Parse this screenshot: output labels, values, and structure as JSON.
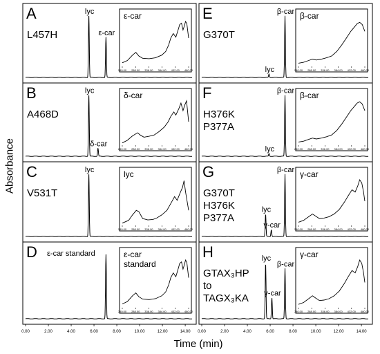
{
  "figure": {
    "ylabel": "Absorbance",
    "xlabel": "Time (min)",
    "x_ticks": [
      "0.00",
      "2.00",
      "4.00",
      "6.00",
      "8.00",
      "10.00",
      "12.00",
      "14.00"
    ],
    "inset_ticks": [
      "240.00",
      "288.00",
      "336.00",
      "384.00",
      "432.00",
      "480.00"
    ]
  },
  "chart_data": [
    {
      "type": "line",
      "panel": "A",
      "label_lines": [
        "L457H"
      ],
      "xlabel": "Time (min)",
      "ylabel": "Absorbance",
      "xlim": [
        0,
        14.6
      ],
      "ylim": [
        0,
        1
      ],
      "peaks": [
        {
          "x": 5.55,
          "y": 0.92,
          "label": "lyc"
        },
        {
          "x": 7.05,
          "y": 0.6,
          "label": "ε-car"
        }
      ],
      "inset": {
        "title_lines": [
          "ε-car"
        ],
        "xlim": [
          230,
          490
        ],
        "x": [
          230,
          250,
          270,
          283,
          295,
          310,
          335,
          360,
          385,
          400,
          412,
          420,
          430,
          440,
          450,
          455,
          462,
          468,
          472,
          478,
          483,
          490
        ],
        "y": [
          0.05,
          0.1,
          0.22,
          0.28,
          0.2,
          0.15,
          0.14,
          0.16,
          0.22,
          0.3,
          0.45,
          0.6,
          0.7,
          0.62,
          0.8,
          0.9,
          0.93,
          0.78,
          0.85,
          0.97,
          0.92,
          0.6
        ]
      }
    },
    {
      "type": "line",
      "panel": "B",
      "label_lines": [
        "A468D"
      ],
      "xlabel": "Time (min)",
      "ylabel": "Absorbance",
      "xlim": [
        0,
        14.6
      ],
      "ylim": [
        0,
        1
      ],
      "peaks": [
        {
          "x": 5.55,
          "y": 0.92,
          "label": "lyc"
        },
        {
          "x": 6.35,
          "y": 0.12,
          "label": "δ-car"
        }
      ],
      "inset": {
        "title_lines": [
          "δ-car"
        ],
        "xlim": [
          230,
          490
        ],
        "x": [
          230,
          250,
          270,
          290,
          300,
          315,
          335,
          355,
          375,
          395,
          410,
          420,
          432,
          440,
          452,
          460,
          468,
          475,
          482,
          490
        ],
        "y": [
          0.02,
          0.08,
          0.18,
          0.25,
          0.2,
          0.15,
          0.17,
          0.2,
          0.28,
          0.38,
          0.5,
          0.62,
          0.72,
          0.65,
          0.8,
          0.92,
          0.75,
          0.88,
          0.97,
          0.5
        ]
      }
    },
    {
      "type": "line",
      "panel": "C",
      "label_lines": [
        "V531T"
      ],
      "xlabel": "Time (min)",
      "ylabel": "Absorbance",
      "xlim": [
        0,
        14.6
      ],
      "ylim": [
        0,
        1
      ],
      "peaks": [
        {
          "x": 5.55,
          "y": 0.92,
          "label": "lyc"
        }
      ],
      "inset": {
        "title_lines": [
          "lyc"
        ],
        "xlim": [
          230,
          490
        ],
        "x": [
          230,
          255,
          270,
          285,
          295,
          310,
          330,
          350,
          365,
          385,
          405,
          420,
          435,
          445,
          458,
          466,
          472,
          478,
          490
        ],
        "y": [
          0.02,
          0.08,
          0.2,
          0.3,
          0.27,
          0.12,
          0.09,
          0.1,
          0.13,
          0.2,
          0.3,
          0.45,
          0.6,
          0.52,
          0.7,
          0.8,
          0.95,
          0.7,
          0.3
        ]
      }
    },
    {
      "type": "line",
      "panel": "D",
      "label_lines": [
        "ε-car standard"
      ],
      "xlabel": "Time (min)",
      "ylabel": "Absorbance",
      "xlim": [
        0,
        14.6
      ],
      "ylim": [
        0,
        1
      ],
      "peaks": [
        {
          "x": 7.05,
          "y": 0.92,
          "label": ""
        }
      ],
      "inset": {
        "title_lines": [
          "ε-car",
          "standard"
        ],
        "xlim": [
          230,
          490
        ],
        "x": [
          230,
          250,
          270,
          283,
          295,
          310,
          335,
          360,
          385,
          400,
          412,
          420,
          430,
          440,
          450,
          455,
          462,
          468,
          472,
          478,
          483,
          490
        ],
        "y": [
          0.05,
          0.1,
          0.22,
          0.28,
          0.2,
          0.15,
          0.14,
          0.16,
          0.22,
          0.3,
          0.45,
          0.6,
          0.7,
          0.62,
          0.8,
          0.9,
          0.93,
          0.78,
          0.85,
          0.97,
          0.92,
          0.6
        ]
      }
    },
    {
      "type": "line",
      "panel": "E",
      "label_lines": [
        "G370T"
      ],
      "xlabel": "Time (min)",
      "ylabel": "Absorbance",
      "xlim": [
        0,
        14.6
      ],
      "ylim": [
        0,
        1
      ],
      "peaks": [
        {
          "x": 5.9,
          "y": 0.05,
          "label": "lyc"
        },
        {
          "x": 7.3,
          "y": 0.92,
          "label": "β-car"
        }
      ],
      "inset": {
        "title_lines": [
          "β-car"
        ],
        "xlim": [
          230,
          490
        ],
        "x": [
          230,
          250,
          270,
          285,
          300,
          320,
          340,
          360,
          380,
          400,
          420,
          435,
          450,
          460,
          470,
          480,
          490
        ],
        "y": [
          0.04,
          0.06,
          0.1,
          0.13,
          0.11,
          0.13,
          0.16,
          0.2,
          0.3,
          0.45,
          0.62,
          0.75,
          0.85,
          0.92,
          0.95,
          0.9,
          0.75
        ]
      }
    },
    {
      "type": "line",
      "panel": "F",
      "label_lines": [
        "H376K",
        "P377A"
      ],
      "xlabel": "Time (min)",
      "ylabel": "Absorbance",
      "xlim": [
        0,
        14.6
      ],
      "ylim": [
        0,
        1
      ],
      "peaks": [
        {
          "x": 5.9,
          "y": 0.04,
          "label": "lyc"
        },
        {
          "x": 7.3,
          "y": 0.92,
          "label": "β-car"
        }
      ],
      "inset": {
        "title_lines": [
          "β-car"
        ],
        "xlim": [
          230,
          490
        ],
        "x": [
          230,
          250,
          270,
          285,
          300,
          320,
          340,
          360,
          380,
          400,
          420,
          435,
          450,
          460,
          470,
          480,
          490
        ],
        "y": [
          0.04,
          0.06,
          0.1,
          0.13,
          0.11,
          0.13,
          0.16,
          0.2,
          0.3,
          0.45,
          0.62,
          0.75,
          0.85,
          0.92,
          0.95,
          0.9,
          0.75
        ]
      }
    },
    {
      "type": "line",
      "panel": "G",
      "label_lines": [
        "G370T",
        "H376K",
        "P377A"
      ],
      "xlabel": "Time (min)",
      "ylabel": "Absorbance",
      "xlim": [
        0,
        14.6
      ],
      "ylim": [
        0,
        1
      ],
      "peaks": [
        {
          "x": 5.6,
          "y": 0.33,
          "label": "lyc"
        },
        {
          "x": 6.1,
          "y": 0.1,
          "label": "γ-car"
        },
        {
          "x": 7.3,
          "y": 0.92,
          "label": "β-car"
        }
      ],
      "inset": {
        "title_lines": [
          "γ-car"
        ],
        "xlim": [
          230,
          490
        ],
        "x": [
          230,
          250,
          270,
          285,
          298,
          312,
          330,
          350,
          370,
          390,
          410,
          425,
          440,
          452,
          462,
          470,
          478,
          485,
          490
        ],
        "y": [
          0.04,
          0.08,
          0.16,
          0.22,
          0.17,
          0.12,
          0.13,
          0.16,
          0.22,
          0.32,
          0.48,
          0.62,
          0.75,
          0.7,
          0.83,
          0.97,
          0.9,
          0.7,
          0.5
        ]
      }
    },
    {
      "type": "line",
      "panel": "H",
      "label_lines": [
        "GTAX₃HP",
        "to",
        "TAGX₃KA"
      ],
      "xlabel": "Time (min)",
      "ylabel": "Absorbance",
      "xlim": [
        0,
        14.6
      ],
      "ylim": [
        0,
        1
      ],
      "peaks": [
        {
          "x": 5.6,
          "y": 0.8,
          "label": "lyc"
        },
        {
          "x": 6.15,
          "y": 0.3,
          "label": "γ-car"
        },
        {
          "x": 7.3,
          "y": 0.72,
          "label": "β-car"
        }
      ],
      "inset": {
        "title_lines": [
          "γ-car"
        ],
        "xlim": [
          230,
          490
        ],
        "x": [
          230,
          250,
          270,
          285,
          298,
          312,
          330,
          350,
          370,
          390,
          410,
          425,
          440,
          452,
          462,
          470,
          478,
          485,
          490
        ],
        "y": [
          0.04,
          0.08,
          0.16,
          0.22,
          0.17,
          0.12,
          0.13,
          0.16,
          0.22,
          0.32,
          0.48,
          0.62,
          0.75,
          0.7,
          0.83,
          0.97,
          0.9,
          0.7,
          0.5
        ]
      }
    }
  ]
}
